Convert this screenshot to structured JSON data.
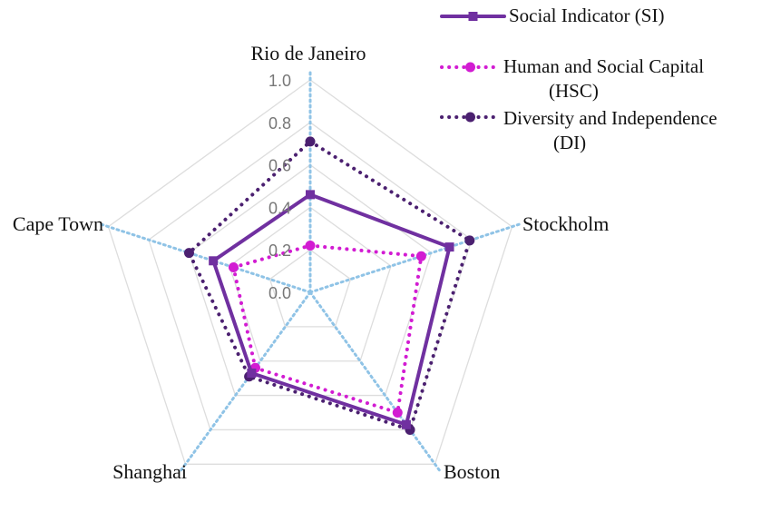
{
  "chart_data": {
    "type": "radar",
    "categories": [
      "Rio de Janeiro",
      "Stockholm",
      "Boston",
      "Shanghai",
      "Cape Town"
    ],
    "rlim": [
      0,
      1.0
    ],
    "ticks": [
      "0.0",
      "0.2",
      "0.4",
      "0.6",
      "0.8",
      "1.0"
    ],
    "grid": true,
    "legend": "top-right",
    "series": [
      {
        "name": "Social Indicator (SI)",
        "name_lines": [
          "Social Indicator (SI)"
        ],
        "values": [
          0.46,
          0.69,
          0.77,
          0.47,
          0.48
        ],
        "color": "#7030a0",
        "style": "solid"
      },
      {
        "name": "Human and Social Capital (HSC)",
        "name_lines": [
          "Human and Social Capital",
          "(HSC)"
        ],
        "values": [
          0.22,
          0.55,
          0.7,
          0.44,
          0.38
        ],
        "color": "#d21cd2",
        "style": "dotted"
      },
      {
        "name": "Diversity and Independence (DI)",
        "name_lines": [
          "Diversity and Independence",
          "(DI)"
        ],
        "values": [
          0.71,
          0.79,
          0.8,
          0.49,
          0.6
        ],
        "color": "#4b2070",
        "style": "dotted"
      }
    ],
    "colors": {
      "grid": "#dddddd",
      "spoke": "#8fc3e6",
      "tick": "#777777"
    }
  }
}
